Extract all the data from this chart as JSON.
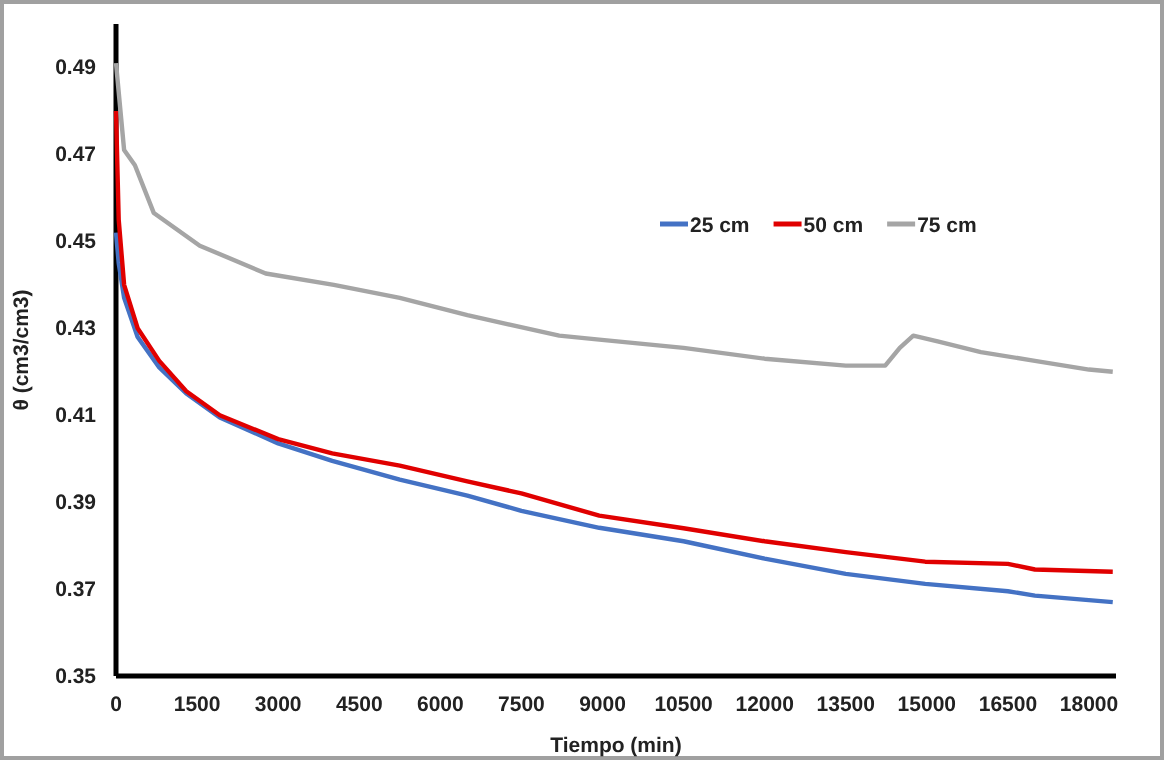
{
  "chart_data": {
    "type": "line",
    "xlabel": "Tiempo (min)",
    "ylabel": "θ (cm3/cm3)",
    "xlim": [
      0,
      18500
    ],
    "ylim": [
      0.35,
      0.5
    ],
    "xticks": [
      0,
      1500,
      3000,
      4500,
      6000,
      7500,
      9000,
      10500,
      12000,
      13500,
      15000,
      16500,
      18000
    ],
    "yticks": [
      0.35,
      0.37,
      0.39,
      0.41,
      0.43,
      0.45,
      0.47,
      0.49
    ],
    "grid": false,
    "legend": "top right",
    "line_style": "solid",
    "marker": "none",
    "series": [
      {
        "name": "25 cm",
        "color": "#4472c4",
        "x": [
          0,
          50,
          150,
          400,
          800,
          1300,
          1920,
          3000,
          4000,
          5250,
          6500,
          7500,
          8940,
          10500,
          12000,
          13500,
          14970,
          16500,
          17000,
          18440
        ],
        "values": [
          0.452,
          0.445,
          0.437,
          0.428,
          0.421,
          0.415,
          0.4095,
          0.4035,
          0.3995,
          0.3952,
          0.3915,
          0.388,
          0.3841,
          0.381,
          0.377,
          0.3735,
          0.3712,
          0.3695,
          0.3685,
          0.367
        ]
      },
      {
        "name": "50 cm",
        "color": "#e00000",
        "x": [
          0,
          50,
          150,
          400,
          800,
          1300,
          1920,
          3000,
          4000,
          5250,
          6500,
          7500,
          8940,
          10500,
          12000,
          13500,
          14970,
          16500,
          17000,
          18440
        ],
        "values": [
          0.48,
          0.455,
          0.44,
          0.43,
          0.4225,
          0.4155,
          0.41,
          0.4045,
          0.4012,
          0.3984,
          0.3948,
          0.392,
          0.3869,
          0.384,
          0.381,
          0.3785,
          0.3763,
          0.3758,
          0.3745,
          0.374
        ]
      },
      {
        "name": "75 cm",
        "color": "#a5a5a5",
        "x": [
          0,
          150,
          350,
          700,
          1550,
          2770,
          4030,
          5250,
          6500,
          8200,
          8940,
          10500,
          12000,
          13500,
          14230,
          14500,
          14750,
          15200,
          16000,
          17000,
          18000,
          18440
        ],
        "values": [
          0.491,
          0.471,
          0.4675,
          0.4565,
          0.449,
          0.4426,
          0.44,
          0.437,
          0.433,
          0.4283,
          0.4274,
          0.4255,
          0.423,
          0.4214,
          0.4214,
          0.4255,
          0.4283,
          0.427,
          0.4245,
          0.4225,
          0.4205,
          0.42
        ]
      }
    ]
  }
}
